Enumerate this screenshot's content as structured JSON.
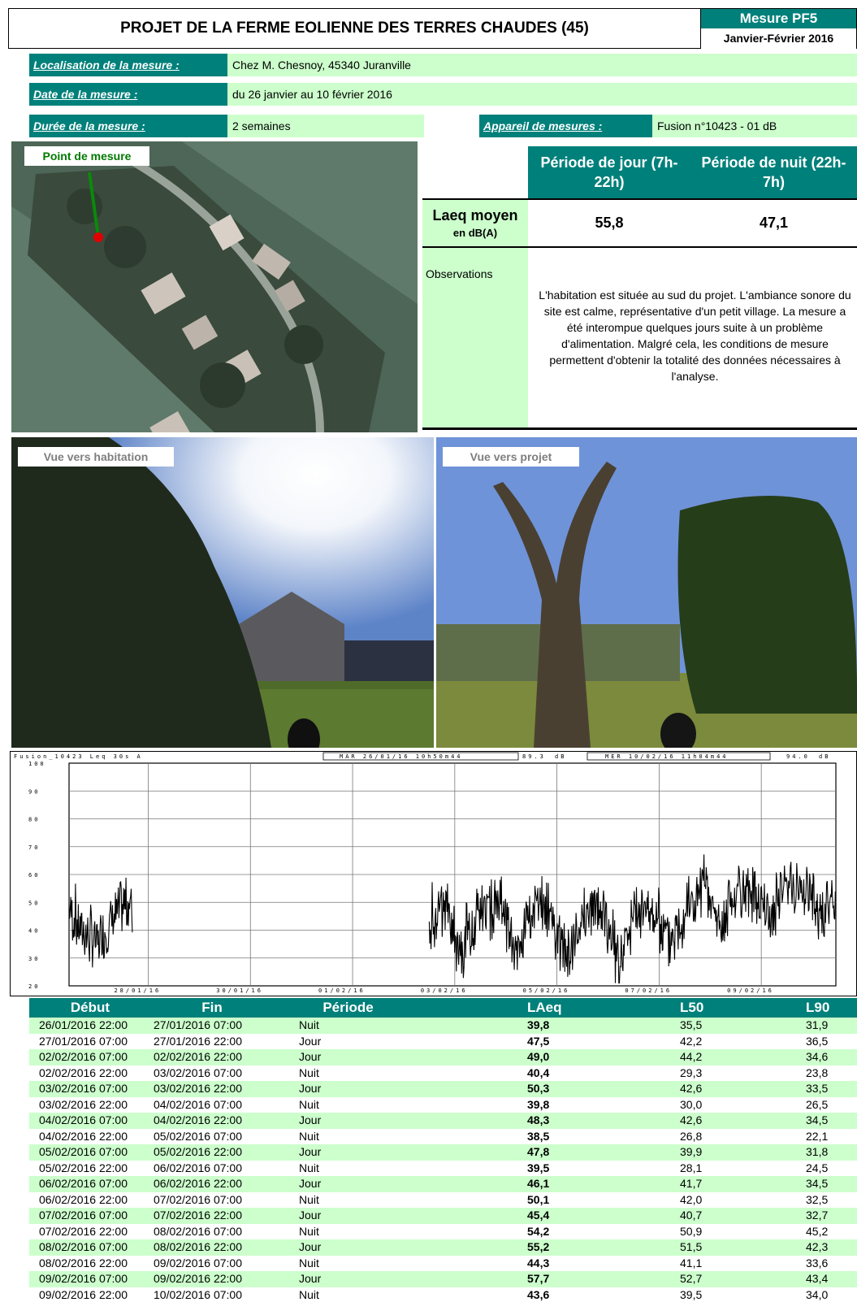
{
  "header": {
    "title": "PROJET DE LA FERME EOLIENNE DES TERRES CHAUDES (45)",
    "measure_id": "Mesure PF5",
    "measure_period": "Janvier-Février 2016"
  },
  "info": {
    "location_label": "Localisation de la mesure :",
    "location_value": "Chez M. Chesnoy, 45340 Juranville",
    "date_label": "Date de la mesure :",
    "date_value": "du 26 janvier au 10 février 2016",
    "duration_label": "Durée de la mesure :",
    "duration_value": "2 semaines",
    "device_label": "Appareil de mesures :",
    "device_value": "Fusion n°10423 - 01 dB"
  },
  "map": {
    "point_label": "Point de mesure"
  },
  "results": {
    "day_header": "Période de jour (7h-22h)",
    "night_header": "Période de nuit (22h-7h)",
    "laeq_label": "Laeq moyen",
    "laeq_unit": "en dB(A)",
    "day_value": "55,8",
    "night_value": "47,1",
    "observations_label": "Observations",
    "observations_text": "L'habitation est située au sud du projet. L'ambiance sonore du site est calme, représentative d'un petit village. La mesure a été interompue quelques jours suite à un problème d'alimentation. Malgré cela, les conditions de mesure permettent d'obtenir la totalité des données nécessaires à l'analyse."
  },
  "photos": {
    "left_label": "Vue vers habitation",
    "right_label": "Vue vers projet"
  },
  "chart_data": {
    "type": "line",
    "header_left": "Fusion_10423   Leq 30s  A",
    "header_start": "MAR 26/01/16 10h50m44",
    "header_start_val": "89.3",
    "header_unit": "dB",
    "header_end": "MER 10/02/16 11h04m44",
    "header_end_val": "94.0",
    "y_ticks": [
      "100",
      "90",
      "80",
      "70",
      "60",
      "50",
      "40",
      "30",
      "20"
    ],
    "ylim": [
      20,
      100
    ],
    "x_ticks": [
      "28/01/16",
      "30/01/16",
      "01/02/16",
      "03/02/16",
      "05/02/16",
      "07/02/16",
      "09/02/16"
    ],
    "xlim_days": [
      26.45,
      41.46
    ],
    "series": [
      {
        "segment": 1,
        "x": [
          26.45,
          26.7,
          27.0,
          27.3,
          27.6,
          27.7
        ],
        "y": [
          48,
          40,
          35,
          44,
          50,
          47
        ]
      },
      {
        "segment": 2,
        "x": [
          33.5,
          33.8,
          34.1,
          34.5,
          34.9,
          35.2,
          35.5,
          35.9,
          36.2,
          36.5,
          36.9,
          37.2,
          37.5,
          37.9,
          38.2,
          38.5,
          38.9,
          39.2,
          39.5,
          39.9,
          40.2,
          40.5,
          40.9,
          41.2,
          41.46
        ],
        "y": [
          44,
          48,
          30,
          50,
          48,
          32,
          48,
          46,
          28,
          47,
          48,
          28,
          46,
          47,
          38,
          48,
          55,
          42,
          50,
          55,
          45,
          58,
          55,
          44,
          50
        ]
      }
    ]
  },
  "table": {
    "headers": [
      "Début",
      "Fin",
      "Période",
      "LAeq",
      "L50",
      "L90"
    ],
    "rows": [
      [
        "26/01/2016 22:00",
        "27/01/2016 07:00",
        "Nuit",
        "39,8",
        "35,5",
        "31,9"
      ],
      [
        "27/01/2016 07:00",
        "27/01/2016 22:00",
        "Jour",
        "47,5",
        "42,2",
        "36,5"
      ],
      [
        "02/02/2016 07:00",
        "02/02/2016 22:00",
        "Jour",
        "49,0",
        "44,2",
        "34,6"
      ],
      [
        "02/02/2016 22:00",
        "03/02/2016 07:00",
        "Nuit",
        "40,4",
        "29,3",
        "23,8"
      ],
      [
        "03/02/2016 07:00",
        "03/02/2016 22:00",
        "Jour",
        "50,3",
        "42,6",
        "33,5"
      ],
      [
        "03/02/2016 22:00",
        "04/02/2016 07:00",
        "Nuit",
        "39,8",
        "30,0",
        "26,5"
      ],
      [
        "04/02/2016 07:00",
        "04/02/2016 22:00",
        "Jour",
        "48,3",
        "42,6",
        "34,5"
      ],
      [
        "04/02/2016 22:00",
        "05/02/2016 07:00",
        "Nuit",
        "38,5",
        "26,8",
        "22,1"
      ],
      [
        "05/02/2016 07:00",
        "05/02/2016 22:00",
        "Jour",
        "47,8",
        "39,9",
        "31,8"
      ],
      [
        "05/02/2016 22:00",
        "06/02/2016 07:00",
        "Nuit",
        "39,5",
        "28,1",
        "24,5"
      ],
      [
        "06/02/2016 07:00",
        "06/02/2016 22:00",
        "Jour",
        "46,1",
        "41,7",
        "34,5"
      ],
      [
        "06/02/2016 22:00",
        "07/02/2016 07:00",
        "Nuit",
        "50,1",
        "42,0",
        "32,5"
      ],
      [
        "07/02/2016 07:00",
        "07/02/2016 22:00",
        "Jour",
        "45,4",
        "40,7",
        "32,7"
      ],
      [
        "07/02/2016 22:00",
        "08/02/2016 07:00",
        "Nuit",
        "54,2",
        "50,9",
        "45,2"
      ],
      [
        "08/02/2016 07:00",
        "08/02/2016 22:00",
        "Jour",
        "55,2",
        "51,5",
        "42,3"
      ],
      [
        "08/02/2016 22:00",
        "09/02/2016 07:00",
        "Nuit",
        "44,3",
        "41,1",
        "33,6"
      ],
      [
        "09/02/2016 07:00",
        "09/02/2016 22:00",
        "Jour",
        "57,7",
        "52,7",
        "43,4"
      ],
      [
        "09/02/2016 22:00",
        "10/02/2016 07:00",
        "Nuit",
        "43,6",
        "39,5",
        "34,0"
      ]
    ]
  }
}
